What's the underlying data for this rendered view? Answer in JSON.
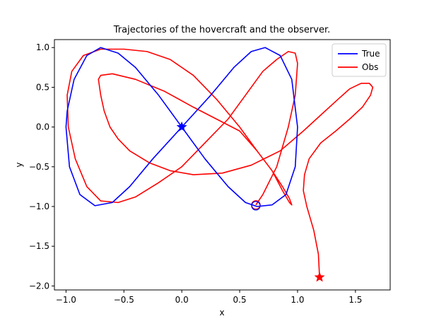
{
  "chart_data": {
    "type": "line",
    "title": "Trajectories of the hovercraft and the observer.",
    "xlabel": "x",
    "ylabel": "y",
    "xlim": [
      -1.1,
      1.8
    ],
    "ylim": [
      -2.05,
      1.1
    ],
    "xticks": [
      -1.0,
      -0.5,
      0.0,
      0.5,
      1.0,
      1.5
    ],
    "xtick_labels": [
      "−1.0",
      "−0.5",
      "0.0",
      "0.5",
      "1.0",
      "1.5"
    ],
    "yticks": [
      -2.0,
      -1.5,
      -1.0,
      -0.5,
      0.0,
      0.5,
      1.0
    ],
    "ytick_labels": [
      "−2.0",
      "−1.5",
      "−1.0",
      "−0.5",
      "0.0",
      "0.5",
      "1.0"
    ],
    "grid": false,
    "legend_position": "top-right",
    "series": [
      {
        "name": "True",
        "color": "#0000ff",
        "x": [
          0.0,
          0.25,
          0.45,
          0.6,
          0.72,
          0.85,
          0.95,
          1.0,
          0.98,
          0.9,
          0.78,
          0.65,
          0.55,
          0.4,
          0.2,
          0.0,
          -0.2,
          -0.4,
          -0.55,
          -0.7,
          -0.82,
          -0.93,
          -0.99,
          -1.0,
          -0.97,
          -0.88,
          -0.75,
          -0.6,
          -0.45,
          -0.25,
          0.0
        ],
        "y": [
          0.0,
          0.4,
          0.75,
          0.95,
          1.0,
          0.9,
          0.6,
          0.0,
          -0.5,
          -0.85,
          -0.98,
          -1.0,
          -0.95,
          -0.75,
          -0.4,
          0.0,
          0.4,
          0.75,
          0.93,
          1.0,
          0.9,
          0.6,
          0.2,
          0.0,
          -0.5,
          -0.85,
          -0.99,
          -0.95,
          -0.75,
          -0.4,
          0.0
        ],
        "markers": [
          {
            "x": 0.0,
            "y": 0.0,
            "symbol": "star"
          },
          {
            "x": 0.64,
            "y": -0.99,
            "symbol": "circle"
          }
        ]
      },
      {
        "name": "Obs",
        "color": "#ff0000",
        "x": [
          1.19,
          1.18,
          1.14,
          1.08,
          1.05,
          1.06,
          1.1,
          1.2,
          1.33,
          1.45,
          1.56,
          1.63,
          1.65,
          1.62,
          1.55,
          1.45,
          1.35,
          1.2,
          1.05,
          0.85,
          0.6,
          0.35,
          0.1,
          -0.1,
          -0.28,
          -0.45,
          -0.55,
          -0.62,
          -0.67,
          -0.7,
          -0.72,
          -0.7,
          -0.6,
          -0.4,
          -0.15,
          0.1,
          0.3,
          0.5,
          0.65,
          0.78,
          0.87,
          0.93,
          0.95,
          0.93,
          0.87,
          0.78,
          0.65,
          0.5,
          0.3,
          0.1,
          -0.1,
          -0.3,
          -0.5,
          -0.7,
          -0.85,
          -0.95,
          -0.99,
          -0.98,
          -0.92,
          -0.82,
          -0.7,
          -0.55,
          -0.4,
          -0.2,
          0.0,
          0.2,
          0.4,
          0.55,
          0.7,
          0.82,
          0.92,
          0.98,
          1.0,
          0.98,
          0.92,
          0.82,
          0.7,
          0.64
        ],
        "y": [
          -1.89,
          -1.6,
          -1.3,
          -1.0,
          -0.8,
          -0.6,
          -0.4,
          -0.2,
          -0.05,
          0.1,
          0.25,
          0.4,
          0.5,
          0.55,
          0.55,
          0.48,
          0.35,
          0.15,
          -0.05,
          -0.3,
          -0.48,
          -0.58,
          -0.6,
          -0.55,
          -0.45,
          -0.3,
          -0.15,
          0.0,
          0.2,
          0.4,
          0.6,
          0.65,
          0.67,
          0.6,
          0.45,
          0.25,
          0.1,
          -0.05,
          -0.3,
          -0.55,
          -0.8,
          -0.95,
          -0.98,
          -0.9,
          -0.75,
          -0.55,
          -0.3,
          0.0,
          0.35,
          0.65,
          0.85,
          0.95,
          0.98,
          0.98,
          0.9,
          0.7,
          0.4,
          0.0,
          -0.4,
          -0.75,
          -0.93,
          -0.95,
          -0.88,
          -0.7,
          -0.5,
          -0.2,
          0.1,
          0.4,
          0.7,
          0.85,
          0.95,
          0.93,
          0.8,
          0.4,
          0.0,
          -0.5,
          -0.85,
          -0.98
        ],
        "markers": [
          {
            "x": 1.19,
            "y": -1.89,
            "symbol": "star"
          },
          {
            "x": 0.64,
            "y": -0.98,
            "symbol": "circle"
          }
        ]
      }
    ]
  }
}
